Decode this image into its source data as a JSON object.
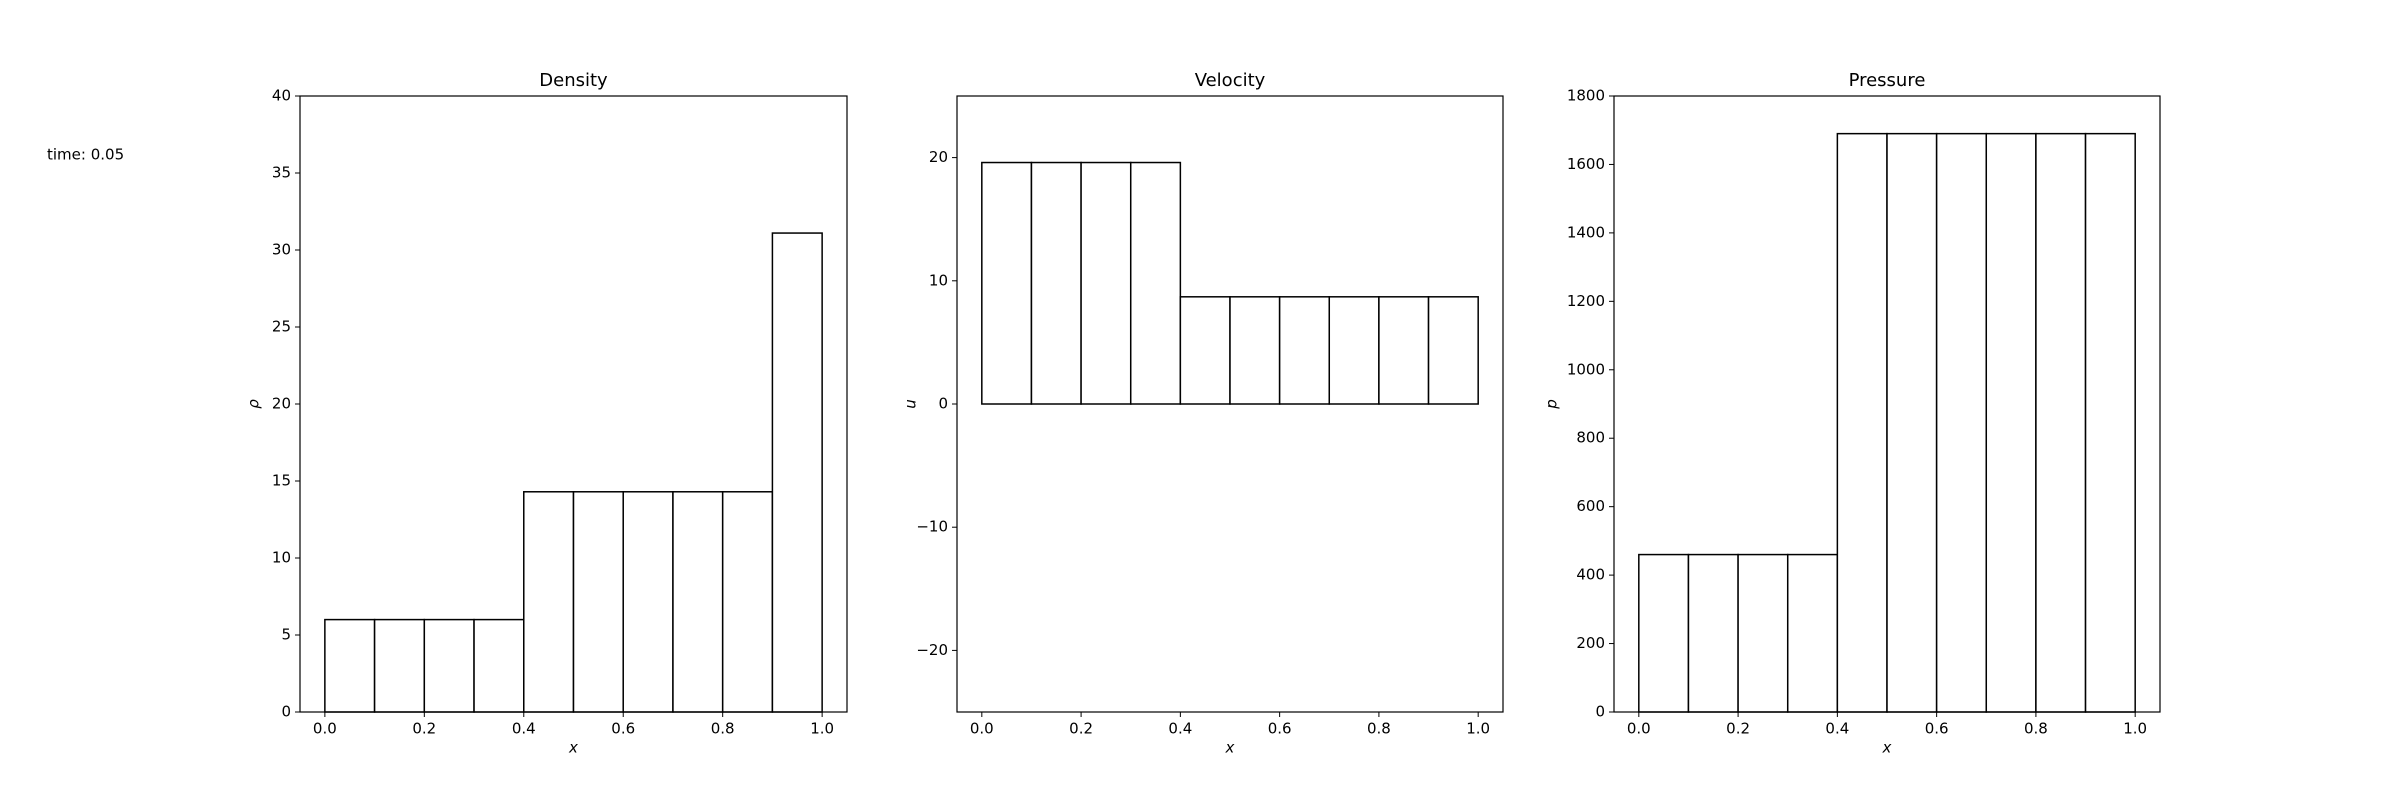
{
  "annotation": "time: 0.05",
  "chart_data": [
    {
      "type": "histogram",
      "title": "Density",
      "xlabel": "x",
      "ylabel": "ρ",
      "bins": [
        0,
        0.1,
        0.2,
        0.3,
        0.4,
        0.5,
        0.6,
        0.7,
        0.8,
        0.9,
        1.0
      ],
      "values": [
        6,
        6,
        6,
        6,
        14.3,
        14.3,
        14.3,
        14.3,
        14.3,
        31.1
      ],
      "color": "#ffffff",
      "edgecolor": "#000000",
      "xlim": [
        -0.05,
        1.05
      ],
      "xticks": [
        {
          "value": 0,
          "label": "0.0"
        },
        0.2,
        0.4,
        0.6,
        0.8,
        {
          "value": 1,
          "label": "1.0"
        }
      ],
      "ylim": [
        0,
        40
      ],
      "yticks": [
        0,
        5,
        10,
        15,
        20,
        25,
        30,
        35,
        40
      ]
    },
    {
      "type": "histogram",
      "title": "Velocity",
      "xlabel": "x",
      "ylabel": "u",
      "bins": [
        0,
        0.1,
        0.2,
        0.3,
        0.4,
        0.5,
        0.6,
        0.7,
        0.8,
        0.9,
        1.0
      ],
      "values": [
        19.6,
        19.6,
        19.6,
        19.6,
        8.7,
        8.7,
        8.7,
        8.7,
        8.7,
        8.7
      ],
      "color": "#ffffff",
      "edgecolor": "#000000",
      "xlim": [
        -0.05,
        1.05
      ],
      "xticks": [
        {
          "value": 0,
          "label": "0.0"
        },
        0.2,
        0.4,
        0.6,
        0.8,
        {
          "value": 1,
          "label": "1.0"
        }
      ],
      "ylim": [
        -25,
        25
      ],
      "yticks": [
        {
          "value": -20,
          "label": "−20"
        },
        {
          "value": -10,
          "label": "−10"
        },
        0,
        10,
        20
      ]
    },
    {
      "type": "histogram",
      "title": "Pressure",
      "xlabel": "x",
      "ylabel": "p",
      "bins": [
        0,
        0.1,
        0.2,
        0.3,
        0.4,
        0.5,
        0.6,
        0.7,
        0.8,
        0.9,
        1.0
      ],
      "values": [
        460,
        460,
        460,
        460,
        1690,
        1690,
        1690,
        1690,
        1690,
        1690
      ],
      "color": "#ffffff",
      "edgecolor": "#000000",
      "xlim": [
        -0.05,
        1.05
      ],
      "xticks": [
        {
          "value": 0,
          "label": "0.0"
        },
        0.2,
        0.4,
        0.6,
        0.8,
        {
          "value": 1,
          "label": "1.0"
        }
      ],
      "ylim": [
        0,
        1800
      ],
      "yticks": [
        0,
        200,
        400,
        600,
        800,
        1000,
        1200,
        1400,
        1600,
        1800
      ]
    }
  ]
}
